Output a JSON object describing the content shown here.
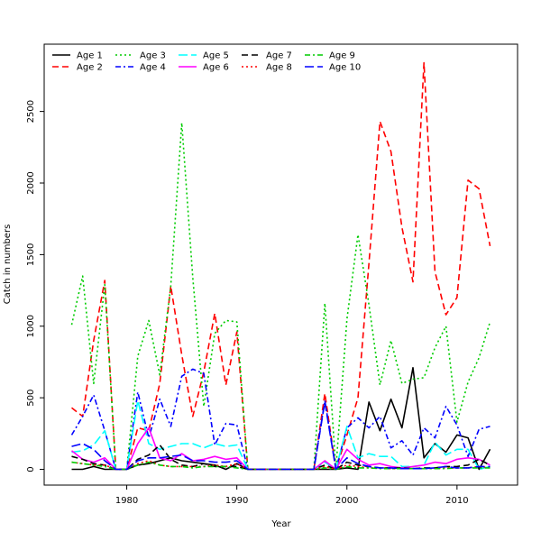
{
  "chart_data": {
    "type": "line",
    "title": "",
    "xlabel": "Year",
    "ylabel": "Catch in numbers",
    "xlim": [
      1972.5,
      2015.5
    ],
    "ylim": [
      -110,
      2970
    ],
    "xticks": [
      1980,
      1990,
      2000,
      2010
    ],
    "xtick_labels": [
      "1980",
      "1990",
      "2000",
      "2010"
    ],
    "yticks": [
      0,
      500,
      1000,
      1500,
      2000,
      2500
    ],
    "ytick_labels": [
      "0",
      "500",
      "1000",
      "1500",
      "2000",
      "2500"
    ],
    "grid": false,
    "legend_position": "top-left",
    "x": [
      1975,
      1976,
      1977,
      1978,
      1979,
      1980,
      1981,
      1982,
      1983,
      1984,
      1985,
      1986,
      1987,
      1988,
      1989,
      1990,
      1991,
      1992,
      1993,
      1994,
      1995,
      1996,
      1997,
      1998,
      1999,
      2000,
      2001,
      2002,
      2003,
      2004,
      2005,
      2006,
      2007,
      2008,
      2009,
      2010,
      2011,
      2012,
      2013
    ],
    "series": [
      {
        "name": "Age 1",
        "color": "#000000",
        "dash": "solid",
        "values": [
          0,
          0,
          20,
          0,
          0,
          0,
          30,
          40,
          60,
          80,
          60,
          50,
          40,
          30,
          0,
          40,
          0,
          0,
          0,
          0,
          0,
          0,
          0,
          0,
          0,
          10,
          0,
          470,
          270,
          490,
          290,
          710,
          80,
          180,
          120,
          240,
          220,
          0,
          140
        ]
      },
      {
        "name": "Age 2",
        "color": "#ff0000",
        "dash": "dashed",
        "values": [
          430,
          370,
          900,
          1320,
          0,
          0,
          290,
          270,
          600,
          1280,
          800,
          370,
          680,
          1090,
          590,
          960,
          0,
          0,
          0,
          0,
          0,
          0,
          0,
          530,
          0,
          240,
          500,
          1440,
          2430,
          2220,
          1690,
          1310,
          2840,
          1380,
          1080,
          1200,
          2020,
          1960,
          1560
        ]
      },
      {
        "name": "Age 3",
        "color": "#00cc00",
        "dash": "dotted",
        "values": [
          1010,
          1350,
          600,
          1290,
          0,
          0,
          790,
          1040,
          660,
          1280,
          2420,
          1340,
          440,
          950,
          1040,
          1030,
          0,
          0,
          0,
          0,
          0,
          0,
          0,
          1160,
          0,
          1050,
          1640,
          1150,
          590,
          900,
          600,
          630,
          640,
          850,
          1000,
          330,
          610,
          780,
          1030
        ]
      },
      {
        "name": "Age 4",
        "color": "#0000ff",
        "dash": "dashdot",
        "values": [
          240,
          370,
          520,
          270,
          0,
          0,
          540,
          220,
          490,
          300,
          650,
          700,
          670,
          170,
          320,
          310,
          0,
          0,
          0,
          0,
          0,
          0,
          0,
          480,
          0,
          290,
          360,
          290,
          370,
          150,
          200,
          100,
          290,
          220,
          440,
          310,
          90,
          280,
          300
        ]
      },
      {
        "name": "Age 5",
        "color": "#00ffff",
        "dash": "longdash",
        "values": [
          120,
          130,
          170,
          270,
          0,
          0,
          480,
          180,
          140,
          160,
          180,
          180,
          150,
          180,
          160,
          170,
          0,
          0,
          0,
          0,
          0,
          0,
          0,
          50,
          0,
          300,
          80,
          110,
          90,
          90,
          20,
          20,
          30,
          190,
          100,
          140,
          140,
          0,
          20
        ]
      },
      {
        "name": "Age 6",
        "color": "#ff00ff",
        "dash": "solid",
        "values": [
          130,
          70,
          50,
          80,
          0,
          0,
          180,
          290,
          80,
          60,
          110,
          60,
          70,
          90,
          70,
          80,
          0,
          0,
          0,
          0,
          0,
          0,
          0,
          60,
          0,
          140,
          70,
          30,
          40,
          20,
          10,
          20,
          30,
          50,
          40,
          70,
          80,
          70,
          30
        ]
      },
      {
        "name": "Age 7",
        "color": "#000000",
        "dash": "dashed",
        "values": [
          90,
          70,
          40,
          30,
          0,
          0,
          70,
          100,
          170,
          70,
          30,
          20,
          40,
          20,
          20,
          20,
          0,
          0,
          0,
          0,
          0,
          0,
          0,
          30,
          0,
          50,
          30,
          20,
          10,
          10,
          10,
          5,
          10,
          10,
          20,
          20,
          30,
          70,
          30
        ]
      },
      {
        "name": "Age 8",
        "color": "#ff0000",
        "dash": "dotted",
        "values": [
          50,
          40,
          30,
          30,
          0,
          0,
          40,
          60,
          30,
          20,
          20,
          20,
          20,
          30,
          20,
          40,
          0,
          0,
          0,
          0,
          0,
          0,
          0,
          20,
          0,
          30,
          20,
          10,
          10,
          5,
          5,
          5,
          5,
          5,
          10,
          10,
          10,
          20,
          10
        ]
      },
      {
        "name": "Age 9",
        "color": "#00cc00",
        "dash": "dashdot",
        "values": [
          50,
          40,
          30,
          20,
          0,
          0,
          30,
          50,
          30,
          20,
          20,
          10,
          20,
          20,
          20,
          10,
          0,
          0,
          0,
          0,
          0,
          0,
          0,
          10,
          0,
          20,
          10,
          10,
          5,
          5,
          5,
          5,
          5,
          5,
          5,
          10,
          10,
          10,
          10
        ]
      },
      {
        "name": "Age 10",
        "color": "#0000ff",
        "dash": "longdash",
        "values": [
          160,
          180,
          140,
          60,
          0,
          0,
          60,
          80,
          80,
          90,
          100,
          60,
          60,
          50,
          50,
          60,
          0,
          0,
          0,
          0,
          0,
          0,
          0,
          470,
          0,
          80,
          40,
          20,
          10,
          10,
          5,
          5,
          5,
          10,
          20,
          10,
          10,
          20,
          20
        ]
      }
    ]
  }
}
